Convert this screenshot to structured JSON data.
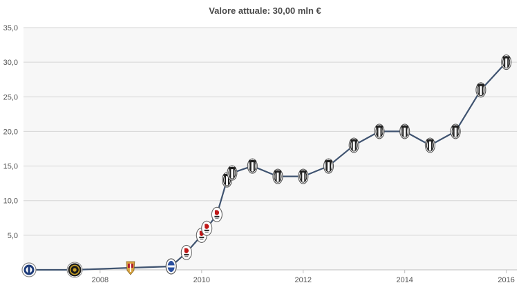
{
  "chart_data": {
    "type": "line",
    "title": "Valore attuale: 30,00 mln €",
    "xlabel": "",
    "ylabel": "",
    "ylim": [
      0,
      35
    ],
    "xlim": [
      2006.6,
      2016.1
    ],
    "y_ticks": [
      "5,0",
      "10,0",
      "15,0",
      "20,0",
      "25,0",
      "30,0",
      "35,0"
    ],
    "x_ticks": [
      "2008",
      "2010",
      "2012",
      "2014",
      "2016"
    ],
    "grid": true,
    "series": [
      {
        "color": "#3f5370",
        "points": [
          {
            "x": 2006.6,
            "y": 0.0,
            "badge": "atalanta-badge"
          },
          {
            "x": 2007.5,
            "y": 0.0,
            "badge": "inter-badge"
          },
          {
            "x": 2008.6,
            "y": 0.3,
            "badge": "genoa-badge"
          },
          {
            "x": 2009.4,
            "y": 0.5,
            "badge": "sampdoria-badge"
          },
          {
            "x": 2009.7,
            "y": 2.5,
            "badge": "bari-badge"
          },
          {
            "x": 2010.0,
            "y": 5.0,
            "badge": "bari-badge"
          },
          {
            "x": 2010.1,
            "y": 6.0,
            "badge": "bari-badge"
          },
          {
            "x": 2010.3,
            "y": 8.0,
            "badge": "bari-badge"
          },
          {
            "x": 2010.5,
            "y": 13.0,
            "badge": "juventus-badge"
          },
          {
            "x": 2010.6,
            "y": 14.0,
            "badge": "juventus-badge"
          },
          {
            "x": 2011.0,
            "y": 15.0,
            "badge": "juventus-badge"
          },
          {
            "x": 2011.5,
            "y": 13.5,
            "badge": "juventus-badge"
          },
          {
            "x": 2012.0,
            "y": 13.5,
            "badge": "juventus-badge"
          },
          {
            "x": 2012.5,
            "y": 15.0,
            "badge": "juventus-badge"
          },
          {
            "x": 2013.0,
            "y": 18.0,
            "badge": "juventus-badge"
          },
          {
            "x": 2013.5,
            "y": 20.0,
            "badge": "juventus-badge"
          },
          {
            "x": 2014.0,
            "y": 20.0,
            "badge": "juventus-badge"
          },
          {
            "x": 2014.5,
            "y": 18.0,
            "badge": "juventus-badge"
          },
          {
            "x": 2015.0,
            "y": 20.0,
            "badge": "juventus-badge"
          },
          {
            "x": 2015.5,
            "y": 26.0,
            "badge": "juventus-badge"
          },
          {
            "x": 2016.0,
            "y": 30.0,
            "badge": "juventus-badge"
          }
        ]
      }
    ],
    "colors": {
      "line": "#3f5370",
      "plot_bg": "#f7f7f7",
      "grid": "#d6d6d6",
      "atalanta": "#1e3c7a",
      "inter": "#1a1a1a",
      "inter_accent": "#c9a227",
      "genoa": "#b01c2e",
      "genoa_accent": "#d9a441",
      "sampdoria": "#2a4f9e",
      "bari": "#c01818",
      "juventus": "#222222"
    }
  }
}
